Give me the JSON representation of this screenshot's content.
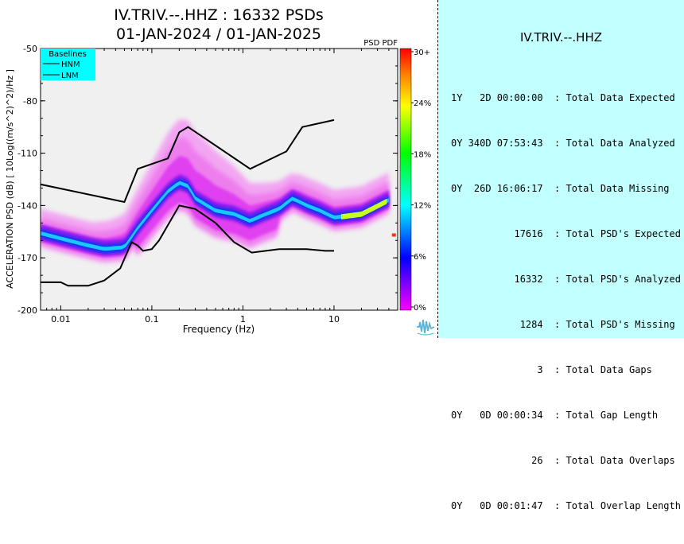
{
  "chart_data": {
    "type": "heatmap",
    "title_line1": "IV.TRIV.--.HHZ : 16332 PSDs",
    "title_line2": "01-JAN-2024 / 01-JAN-2025",
    "xlabel": "Frequency (Hz)",
    "ylabel": "ACCELERATION PSD (dB) [ 10Log((m/s^2)^2)/Hz ]",
    "x_scale": "log",
    "xlim": [
      0.006,
      50
    ],
    "ylim": [
      -200,
      -50
    ],
    "x_ticks": [
      0.01,
      0.1,
      1,
      10
    ],
    "x_tick_labels": [
      "0.01",
      "0.1",
      "1",
      "10"
    ],
    "y_ticks": [
      -50,
      -80,
      -110,
      -140,
      -170,
      -200
    ],
    "y_tick_labels": [
      "-50",
      "-80",
      "-110",
      "-140",
      "-170",
      "-200"
    ],
    "colorbar": {
      "title": "PSD PDF",
      "tick_labels": [
        "30+",
        "24%",
        "18%",
        "12%",
        "6%",
        "0%"
      ],
      "colors": [
        "#ff00ff",
        "#0000ff",
        "#00ffff",
        "#00ff00",
        "#ffff00",
        "#ff8000",
        "#ff0000"
      ]
    },
    "legend": {
      "title": "Baselines",
      "entries": [
        "HNM",
        "LNM"
      ],
      "placement": "top-left",
      "background": "#00ffff"
    },
    "series": [
      {
        "name": "HNM",
        "x": [
          0.005,
          0.05,
          0.07,
          0.15,
          0.2,
          0.25,
          1.2,
          3.0,
          4.5,
          10
        ],
        "y": [
          -127,
          -138,
          -119,
          -113,
          -98,
          -95,
          -119,
          -109,
          -95,
          -91
        ]
      },
      {
        "name": "LNM",
        "x": [
          0.005,
          0.01,
          0.012,
          0.02,
          0.03,
          0.045,
          0.06,
          0.07,
          0.08,
          0.1,
          0.12,
          0.2,
          0.3,
          0.5,
          0.8,
          1.25,
          2.5,
          5,
          8,
          10
        ],
        "y": [
          -184,
          -184,
          -186,
          -186,
          -183,
          -176,
          -161,
          -163,
          -166,
          -165,
          -160,
          -140,
          -142,
          -150,
          -161,
          -167,
          -165,
          -165,
          -166,
          -166
        ]
      }
    ],
    "mode_curve": {
      "x": [
        0.006,
        0.01,
        0.02,
        0.03,
        0.05,
        0.07,
        0.1,
        0.15,
        0.2,
        0.25,
        0.3,
        0.5,
        0.8,
        1.2,
        1.6,
        2.5,
        3.5,
        5,
        7,
        10,
        20,
        40
      ],
      "y": [
        -156,
        -159,
        -163,
        -165,
        -164,
        -153,
        -143,
        -132,
        -127,
        -129,
        -136,
        -143,
        -145,
        -149,
        -146,
        -142,
        -136,
        -140,
        -143,
        -147,
        -145,
        -137
      ]
    }
  },
  "stats_panel": {
    "title": "IV.TRIV.--.HHZ",
    "lines": [
      "1Y   2D 00:00:00  : Total Data Expected",
      "0Y 340D 07:53:43  : Total Data Analyzed",
      "0Y  26D 16:06:17  : Total Data Missing",
      "           17616  : Total PSD's Expected",
      "           16332  : Total PSD's Analyzed",
      "            1284  : Total PSD's Missing",
      "               3  : Total Data Gaps",
      "0Y   0D 00:00:34  : Total Gap Length",
      "              26  : Total Data Overlaps",
      "0Y   0D 00:01:47  : Total Overlap Length"
    ]
  },
  "logo_icon": "waveform-logo-icon"
}
